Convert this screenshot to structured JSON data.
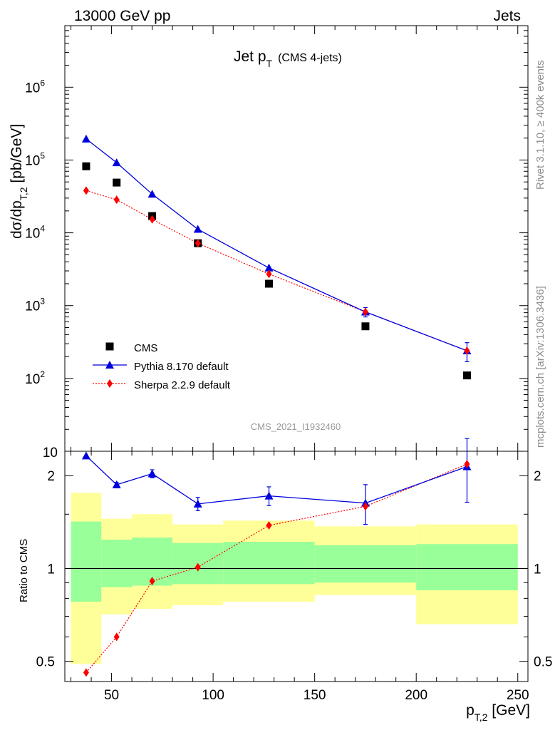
{
  "header": {
    "left": "13000 GeV pp",
    "right": "Jets"
  },
  "side": {
    "rivet": "Rivet 3.1.10, ≥ 400k events",
    "mcplots": "mcplots.cern.ch [arXiv:1306.3436]"
  },
  "main_title": {
    "text": "Jet p",
    "sub": "T",
    "note": "(CMS 4-jets)"
  },
  "analysis_label": "CMS_2021_I1932460",
  "axes": {
    "ylabel_main": {
      "pre": "dσ/dp",
      "sub": "T,2",
      "post": " [pb/GeV]"
    },
    "ylabel_ratio": "Ratio to CMS",
    "xlabel": {
      "pre": "p",
      "sub": "T,2",
      "post": " [GeV]"
    }
  },
  "colors": {
    "data": "#000000",
    "pythia": "#0000dd",
    "sherpa": "#ff0000",
    "band_inner": "#99ff99",
    "band_outer": "#ffff99"
  },
  "chart_data": [
    {
      "type": "scatter",
      "panel": "main",
      "yscale": "log",
      "xlim": [
        27,
        255
      ],
      "ylim": [
        10,
        7000000
      ],
      "yticks": [
        {
          "mant": "10",
          "exp": "2",
          "value": 100
        },
        {
          "mant": "10",
          "exp": "3",
          "value": 1000
        },
        {
          "mant": "10",
          "exp": "4",
          "value": 10000
        },
        {
          "mant": "10",
          "exp": "5",
          "value": 100000
        },
        {
          "mant": "10",
          "exp": "6",
          "value": 1000000
        }
      ],
      "ytick_bottom_label": "10",
      "legend_position": "bottom-left",
      "series": [
        {
          "name": "CMS",
          "style": "square-markers",
          "x": [
            37.5,
            52.5,
            70,
            92.5,
            127.5,
            175,
            225
          ],
          "y": [
            82000,
            49000,
            17000,
            7200,
            2000,
            520,
            110
          ]
        },
        {
          "name": "Pythia 8.170 default",
          "style": "solid-line-triangles",
          "x": [
            37.5,
            52.5,
            70,
            92.5,
            127.5,
            175,
            225
          ],
          "y": [
            195000,
            92000,
            34000,
            11200,
            3300,
            820,
            240
          ],
          "yerr": [
            0,
            0,
            0,
            0,
            0,
            120,
            70
          ]
        },
        {
          "name": "Sherpa 2.2.9 default",
          "style": "dotted-line-diamonds",
          "x": [
            37.5,
            52.5,
            70,
            92.5,
            127.5,
            175,
            225
          ],
          "y": [
            38000,
            28500,
            15300,
            7200,
            2720,
            820,
            240
          ]
        }
      ]
    },
    {
      "type": "scatter",
      "panel": "ratio",
      "yscale": "log",
      "xlim": [
        27,
        255
      ],
      "ylim": [
        0.43,
        2.4
      ],
      "xticks": [
        50,
        100,
        150,
        200,
        250
      ],
      "yticks": [
        0.5,
        1,
        2
      ],
      "reference_line": 1,
      "bands": {
        "edges": [
          30,
          45,
          60,
          80,
          105,
          150,
          200,
          250
        ],
        "inner_low": [
          0.78,
          0.87,
          0.88,
          0.89,
          0.89,
          0.9,
          0.85
        ],
        "inner_high": [
          1.42,
          1.24,
          1.26,
          1.21,
          1.22,
          1.19,
          1.2
        ],
        "outer_low": [
          0.49,
          0.71,
          0.74,
          0.76,
          0.78,
          0.82,
          0.66
        ],
        "outer_high": [
          1.76,
          1.45,
          1.5,
          1.39,
          1.43,
          1.37,
          1.39
        ]
      },
      "series": [
        {
          "name": "Pythia 8.170 default",
          "x": [
            37.5,
            52.5,
            70,
            92.5,
            127.5,
            175,
            225
          ],
          "y": [
            2.32,
            1.87,
            2.03,
            1.62,
            1.72,
            1.63,
            2.14
          ],
          "yerr": [
            0,
            0.03,
            0.06,
            0.08,
            0.12,
            0.24,
            0.5
          ]
        },
        {
          "name": "Sherpa 2.2.9 default",
          "x": [
            37.5,
            52.5,
            70,
            92.5,
            127.5,
            175,
            225
          ],
          "y": [
            0.46,
            0.6,
            0.91,
            1.01,
            1.38,
            1.59,
            2.18
          ]
        }
      ]
    }
  ]
}
